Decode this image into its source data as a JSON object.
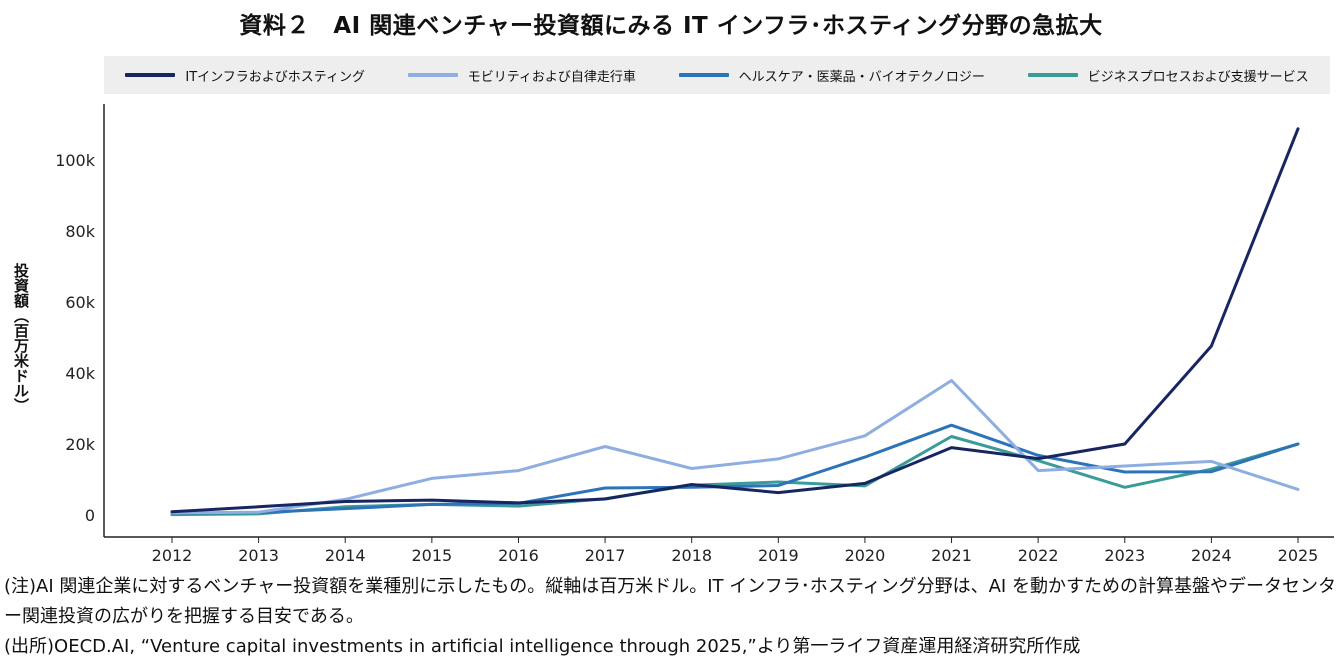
{
  "title": "資料２　AI 関連ベンチャー投資額にみる IT インフラ･ホスティング分野の急拡大",
  "notes": {
    "note": "(注)AI 関連企業に対するベンチャー投資額を業種別に示したもの。縦軸は百万米ドル。IT インフラ･ホスティング分野は、AI を動かすための計算基盤やデータセンター関連投資の広がりを把握する目安である。",
    "source": "(出所)OECD.AI, “Venture capital investments in artificial intelligence through 2025,”より第一ライフ資産運用経済研究所作成"
  },
  "chart_data": {
    "type": "line",
    "title": "資料２　AI 関連ベンチャー投資額にみる IT インフラ･ホスティング分野の急拡大",
    "xlabel": "",
    "ylabel": "投資額（百万米ドル）",
    "ylim": [
      -2000,
      116000
    ],
    "yticks": [
      0,
      20000,
      40000,
      60000,
      80000,
      100000
    ],
    "ytick_labels": [
      "0",
      "20k",
      "40k",
      "60k",
      "80k",
      "100k"
    ],
    "grid": false,
    "legend_position": "top",
    "categories": [
      "2012",
      "2013",
      "2014",
      "2015",
      "2016",
      "2017",
      "2018",
      "2019",
      "2020",
      "2021",
      "2022",
      "2023",
      "2024",
      "2025"
    ],
    "series": [
      {
        "name": "ITインフラおよびホスティング",
        "color": "#172661",
        "values": [
          900,
          2300,
          3800,
          4200,
          3400,
          4500,
          8600,
          6300,
          8900,
          19000,
          15900,
          20000,
          47600,
          108800
        ]
      },
      {
        "name": "モビリティおよび自律走行車",
        "color": "#8eaee1",
        "values": [
          600,
          800,
          4400,
          10300,
          12500,
          19300,
          13100,
          15800,
          22300,
          37900,
          12500,
          13800,
          15100,
          7200
        ]
      },
      {
        "name": "ヘルスケア・医薬品・バイオテクノロジー",
        "color": "#2c73b8",
        "values": [
          500,
          700,
          1800,
          3000,
          3300,
          7600,
          7800,
          8300,
          16300,
          25300,
          16800,
          12100,
          12200,
          20000
        ]
      },
      {
        "name": "ビジネスプロセスおよび支援サービス",
        "color": "#3a9b98",
        "values": [
          100,
          300,
          2300,
          3000,
          2500,
          4600,
          8400,
          9300,
          8200,
          22100,
          15300,
          7800,
          12900,
          20000
        ]
      }
    ]
  }
}
